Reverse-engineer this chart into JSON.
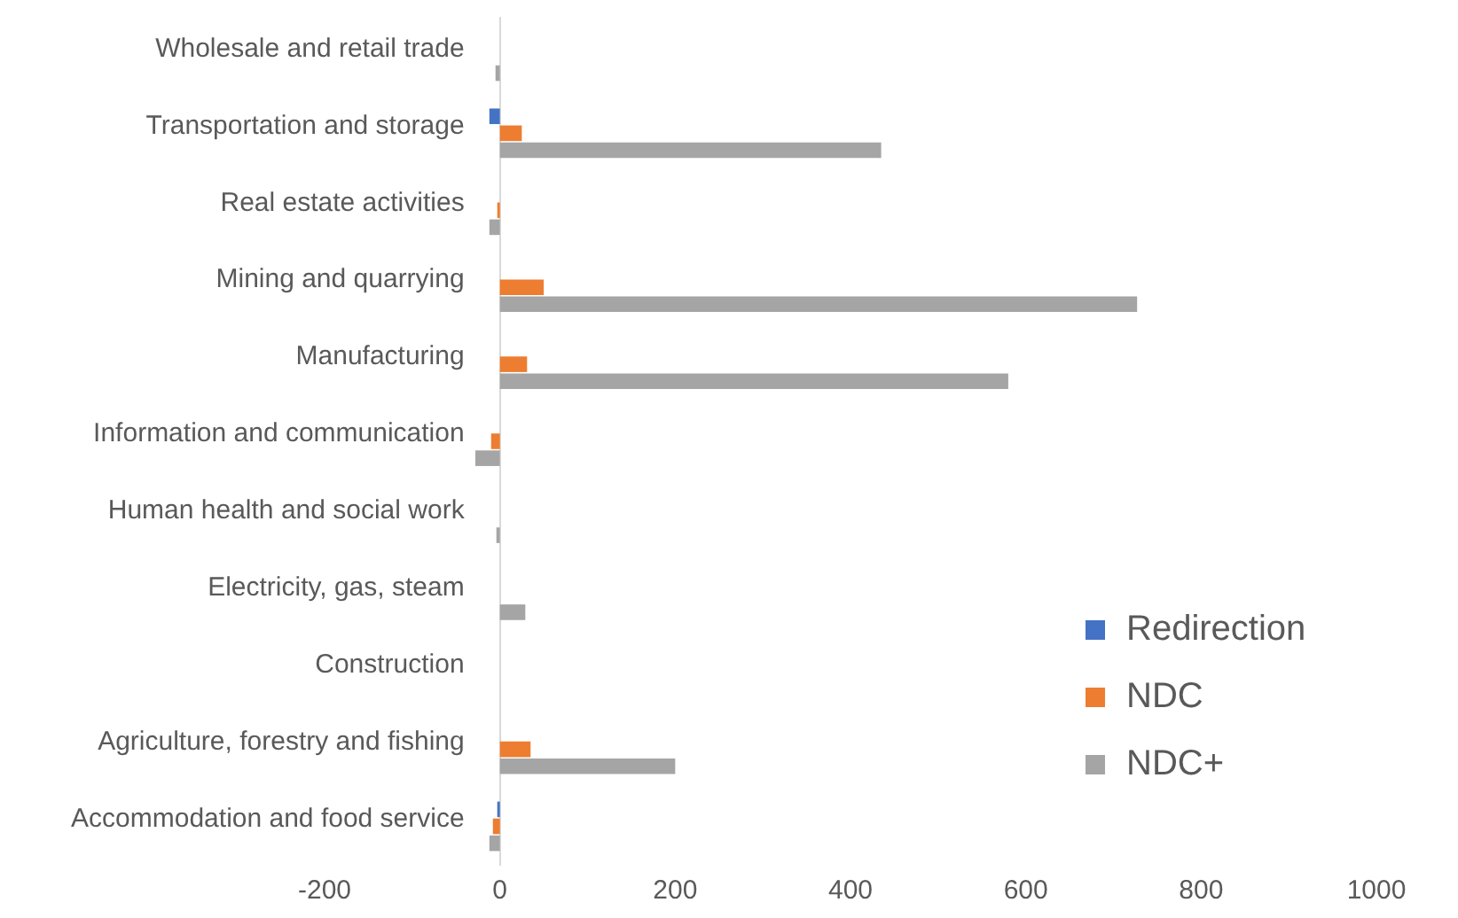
{
  "chart_data": {
    "type": "bar",
    "orientation": "horizontal",
    "categories": [
      "Wholesale and retail trade",
      "Transportation and storage",
      "Real estate activities",
      "Mining and quarrying",
      "Manufacturing",
      "Information and communication",
      "Human health and social work",
      "Electricity, gas, steam",
      "Construction",
      "Agriculture, forestry and fishing",
      "Accommodation and food service"
    ],
    "series": [
      {
        "name": "Redirection",
        "color": "#4472c4",
        "values": [
          0,
          -12,
          0,
          0,
          0,
          0,
          0,
          0,
          0,
          0,
          -3
        ]
      },
      {
        "name": "NDC",
        "color": "#ed7d31",
        "values": [
          0,
          25,
          -3,
          50,
          31,
          -10,
          0,
          0,
          0,
          35,
          -8
        ]
      },
      {
        "name": "NDC+",
        "color": "#a5a5a5",
        "values": [
          -5,
          435,
          -12,
          727,
          580,
          -28,
          -4,
          29,
          0,
          200,
          -12
        ]
      }
    ],
    "xlim": [
      -200,
      1000
    ],
    "xticks": [
      -200,
      0,
      200,
      400,
      600,
      800,
      1000
    ],
    "grid": false,
    "legend": "right"
  }
}
